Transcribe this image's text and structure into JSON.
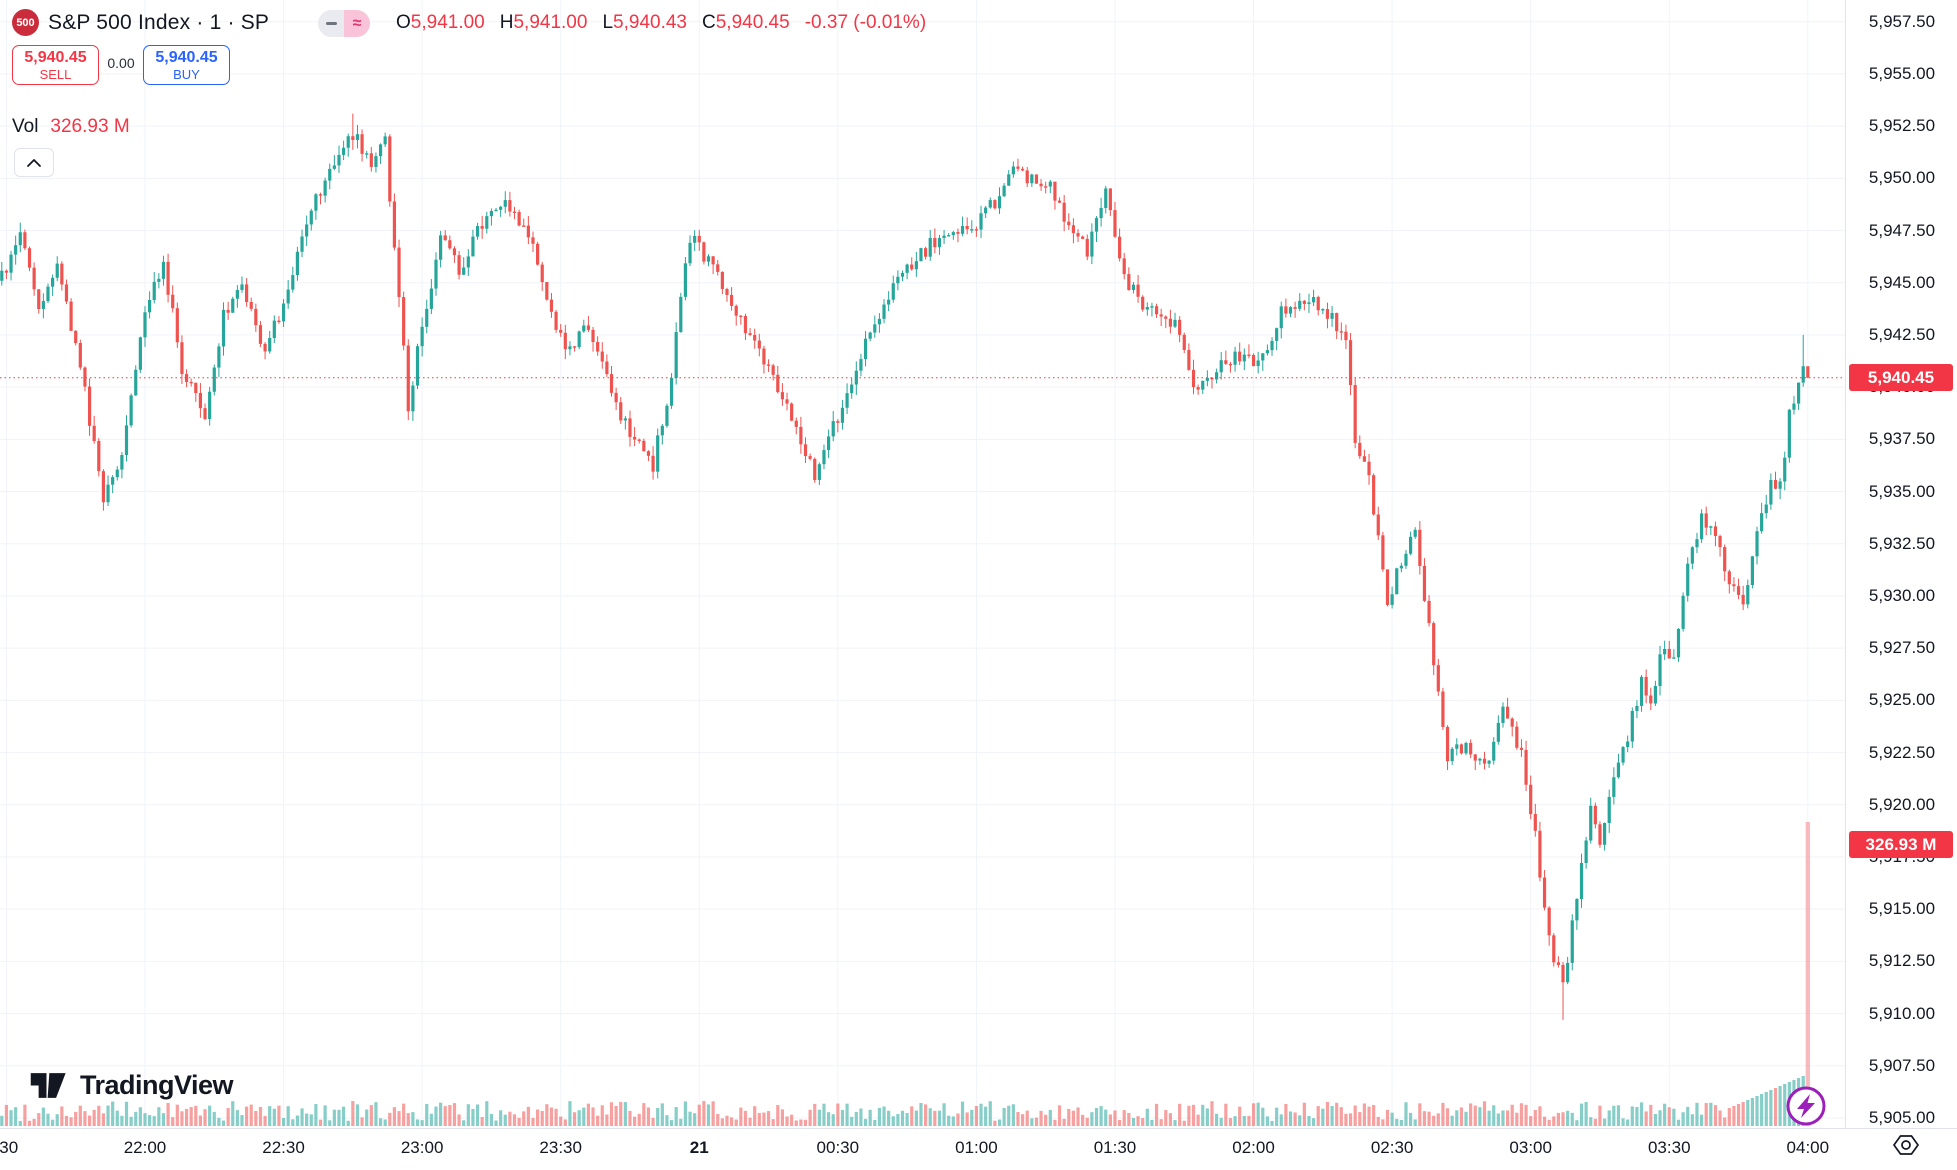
{
  "header": {
    "symbol_badge": "500",
    "title": "S&P 500 Index · 1 · SP",
    "ohlc": {
      "o_label": "O",
      "o": "5,941.00",
      "h_label": "H",
      "h": "5,941.00",
      "l_label": "L",
      "l": "5,940.43",
      "c_label": "C",
      "c": "5,940.45",
      "change": "-0.37 (-0.01%)"
    }
  },
  "trade_panel": {
    "sell_price": "5,940.45",
    "sell_label": "SELL",
    "spread": "0.00",
    "buy_price": "5,940.45",
    "buy_label": "BUY"
  },
  "volume_row": {
    "label": "Vol",
    "value": "326.93 M"
  },
  "price_scale": {
    "labels": [
      "5,957.50",
      "5,955.00",
      "5,952.50",
      "5,950.00",
      "5,947.50",
      "5,945.00",
      "5,942.50",
      "5,940.00",
      "5,937.50",
      "5,935.00",
      "5,932.50",
      "5,930.00",
      "5,927.50",
      "5,925.00",
      "5,922.50",
      "5,920.00",
      "5,917.50",
      "5,915.00",
      "5,912.50",
      "5,910.00",
      "5,907.50",
      "5,905.00"
    ],
    "price_badge": "5,940.45",
    "volume_badge": "326.93 M"
  },
  "time_scale": {
    "labels": [
      {
        "label": ":30",
        "t": 1,
        "bold": false
      },
      {
        "label": "22:00",
        "t": 31,
        "bold": false
      },
      {
        "label": "22:30",
        "t": 61,
        "bold": false
      },
      {
        "label": "23:00",
        "t": 91,
        "bold": false
      },
      {
        "label": "23:30",
        "t": 121,
        "bold": false
      },
      {
        "label": "21",
        "t": 151,
        "bold": true
      },
      {
        "label": "00:30",
        "t": 181,
        "bold": false
      },
      {
        "label": "01:00",
        "t": 211,
        "bold": false
      },
      {
        "label": "01:30",
        "t": 241,
        "bold": false
      },
      {
        "label": "02:00",
        "t": 271,
        "bold": false
      },
      {
        "label": "02:30",
        "t": 301,
        "bold": false
      },
      {
        "label": "03:00",
        "t": 331,
        "bold": false
      },
      {
        "label": "03:30",
        "t": 361,
        "bold": false
      },
      {
        "label": "04:00",
        "t": 391,
        "bold": false
      }
    ]
  },
  "logo_text": "TradingView",
  "icons": {
    "mini_toggle_left": "dash-icon",
    "mini_toggle_right": "≈",
    "collapse": "chevron-up",
    "flash": "lightning-bolt",
    "corner": "hexagon-eye"
  },
  "colors": {
    "up": "#26a69a",
    "down": "#ef5350",
    "accent_red": "#f23645",
    "accent_blue": "#2962ff",
    "text": "#131722",
    "grid": "#f0f3fa",
    "axis_border": "#e0e3eb",
    "badge_bg": "#f23645",
    "flash_purple": "#9b1fb8",
    "vol_up": "rgba(38,166,154,0.55)",
    "vol_down": "rgba(239,83,80,0.55)",
    "vol_spike": "rgba(247,121,127,0.5)"
  },
  "chart_data": {
    "type": "candlestick",
    "symbol": "S&P 500 Index",
    "interval": "1",
    "exchange": "SP",
    "session_start": "21:29",
    "session_end": "04:00",
    "current_price": 5940.45,
    "last_candle": {
      "open": 5941.0,
      "high": 5941.0,
      "low": 5940.43,
      "close": 5940.45
    },
    "session_high": 5953.1,
    "session_low": 5909.7,
    "volume_text": "326.93 M",
    "y_axis": {
      "min": 5905,
      "max": 5957.5,
      "tick_step": 2.5,
      "grid": true
    },
    "x_axis": {
      "tick_interval_min": 30,
      "minutes_total": 391
    },
    "waypoints_min_price": [
      [
        0,
        5945.2
      ],
      [
        4,
        5947.3
      ],
      [
        8,
        5943.5
      ],
      [
        12,
        5945.6
      ],
      [
        17,
        5941.0
      ],
      [
        22,
        5934.6
      ],
      [
        26,
        5936.5
      ],
      [
        31,
        5943.8
      ],
      [
        35,
        5945.8
      ],
      [
        39,
        5941.0
      ],
      [
        44,
        5938.6
      ],
      [
        48,
        5943.4
      ],
      [
        52,
        5944.6
      ],
      [
        57,
        5941.6
      ],
      [
        62,
        5944.8
      ],
      [
        67,
        5948.6
      ],
      [
        71,
        5950.4
      ],
      [
        76,
        5952.2
      ],
      [
        80,
        5950.6
      ],
      [
        83,
        5951.7
      ],
      [
        88,
        5939.2
      ],
      [
        92,
        5944.0
      ],
      [
        95,
        5947.1
      ],
      [
        99,
        5945.6
      ],
      [
        103,
        5947.4
      ],
      [
        109,
        5948.8
      ],
      [
        114,
        5947.3
      ],
      [
        118,
        5944.4
      ],
      [
        122,
        5941.8
      ],
      [
        127,
        5942.8
      ],
      [
        133,
        5939.0
      ],
      [
        137,
        5937.6
      ],
      [
        141,
        5936.3
      ],
      [
        145,
        5940.5
      ],
      [
        147,
        5944.5
      ],
      [
        149,
        5947.2
      ],
      [
        154,
        5945.6
      ],
      [
        160,
        5943.2
      ],
      [
        166,
        5940.8
      ],
      [
        171,
        5938.4
      ],
      [
        176,
        5935.8
      ],
      [
        181,
        5938.6
      ],
      [
        187,
        5942.2
      ],
      [
        193,
        5944.8
      ],
      [
        199,
        5946.4
      ],
      [
        205,
        5947.6
      ],
      [
        210,
        5947.4
      ],
      [
        214,
        5948.6
      ],
      [
        219,
        5950.3
      ],
      [
        226,
        5949.9
      ],
      [
        231,
        5947.8
      ],
      [
        235,
        5946.6
      ],
      [
        239,
        5949.2
      ],
      [
        243,
        5945.2
      ],
      [
        248,
        5943.6
      ],
      [
        254,
        5943.2
      ],
      [
        259,
        5939.6
      ],
      [
        263,
        5941.0
      ],
      [
        268,
        5941.6
      ],
      [
        272,
        5940.9
      ],
      [
        277,
        5943.6
      ],
      [
        283,
        5944.4
      ],
      [
        288,
        5943.2
      ],
      [
        291,
        5942.6
      ],
      [
        293,
        5937.2
      ],
      [
        296,
        5935.6
      ],
      [
        298,
        5932.8
      ],
      [
        300,
        5929.6
      ],
      [
        303,
        5931.8
      ],
      [
        306,
        5933.2
      ],
      [
        309,
        5928.4
      ],
      [
        311,
        5925.4
      ],
      [
        313,
        5922.4
      ],
      [
        317,
        5922.8
      ],
      [
        321,
        5921.6
      ],
      [
        325,
        5924.6
      ],
      [
        329,
        5922.6
      ],
      [
        332,
        5918.4
      ],
      [
        335,
        5913.6
      ],
      [
        338,
        5911.2
      ],
      [
        341,
        5915.8
      ],
      [
        344,
        5919.8
      ],
      [
        346,
        5918.2
      ],
      [
        349,
        5921.4
      ],
      [
        352,
        5923.4
      ],
      [
        355,
        5925.8
      ],
      [
        357,
        5925.2
      ],
      [
        360,
        5927.8
      ],
      [
        362,
        5926.8
      ],
      [
        365,
        5931.4
      ],
      [
        368,
        5933.8
      ],
      [
        371,
        5933.2
      ],
      [
        374,
        5930.6
      ],
      [
        377,
        5929.4
      ],
      [
        380,
        5932.8
      ],
      [
        383,
        5935.4
      ],
      [
        385,
        5935.2
      ],
      [
        387,
        5938.8
      ],
      [
        389,
        5940.0
      ],
      [
        390,
        5941.0
      ],
      [
        391,
        5940.45
      ]
    ]
  }
}
